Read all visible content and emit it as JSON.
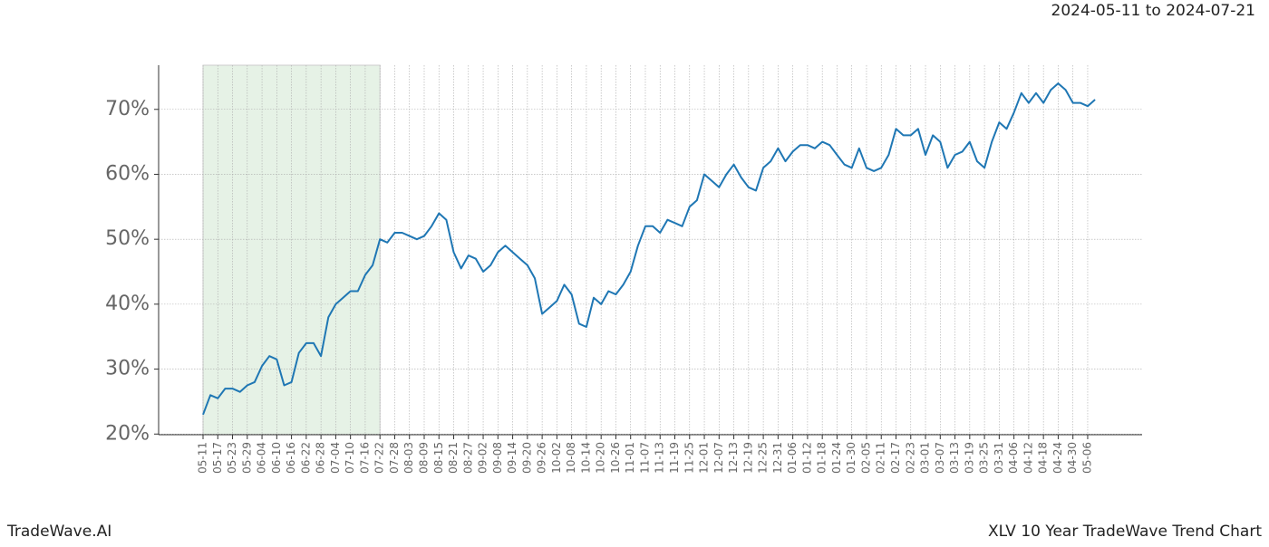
{
  "chart_data": {
    "type": "line",
    "date_range": "2024-05-11 to 2024-07-21",
    "brand": "TradeWave.AI",
    "title": "XLV 10 Year TradeWave Trend Chart",
    "categories": [
      "05-11",
      null,
      "05-17",
      null,
      "05-23",
      null,
      "05-29",
      null,
      "06-04",
      null,
      "06-10",
      null,
      "06-16",
      null,
      "06-22",
      null,
      "06-28",
      null,
      "07-04",
      null,
      "07-10",
      null,
      "07-16",
      null,
      "07-22",
      null,
      "07-28",
      null,
      "08-03",
      null,
      "08-09",
      null,
      "08-15",
      null,
      "08-21",
      null,
      "08-27",
      null,
      "09-02",
      null,
      "09-08",
      null,
      "09-14",
      null,
      "09-20",
      null,
      "09-26",
      null,
      "10-02",
      null,
      "10-08",
      null,
      "10-14",
      null,
      "10-20",
      null,
      "10-26",
      null,
      "11-01",
      null,
      "11-07",
      null,
      "11-13",
      null,
      "11-19",
      null,
      "11-25",
      null,
      "12-01",
      null,
      "12-07",
      null,
      "12-13",
      null,
      "12-19",
      null,
      "12-25",
      null,
      "12-31",
      null,
      "01-06",
      null,
      "01-12",
      null,
      "01-18",
      null,
      "01-24",
      null,
      "01-30",
      null,
      "02-05",
      null,
      "02-11",
      null,
      "02-17",
      null,
      "02-23",
      null,
      "03-01",
      null,
      "03-07",
      null,
      "03-13",
      null,
      "03-19",
      null,
      "03-25",
      null,
      "03-31",
      null,
      "04-06",
      null,
      "04-12",
      null,
      "04-18",
      null,
      "04-24",
      null,
      "04-30",
      null,
      "05-06",
      null
    ],
    "series": [
      {
        "color": "#1f77b4",
        "values": [
          23,
          26,
          25.5,
          27,
          27,
          26.5,
          27.5,
          28,
          30.5,
          32,
          31.5,
          27.5,
          28,
          32.5,
          34,
          34,
          32,
          38,
          40,
          41,
          42,
          42,
          44.5,
          46,
          50,
          49.5,
          51,
          51,
          50.5,
          50,
          50.5,
          52,
          54,
          53,
          48,
          45.5,
          47.5,
          47,
          45,
          46,
          48,
          49,
          48,
          47,
          46,
          44,
          38.5,
          39.5,
          40.5,
          43,
          41.5,
          37,
          36.5,
          41,
          40,
          42,
          41.5,
          43,
          45,
          49,
          52,
          52,
          51,
          53,
          52.5,
          52,
          55,
          56,
          60,
          59,
          58,
          60,
          61.5,
          59.5,
          58,
          57.5,
          61,
          62,
          64,
          62,
          63.5,
          64.5,
          64.5,
          64,
          65,
          64.5,
          63,
          61.5,
          61,
          64,
          61,
          60.5,
          61,
          63,
          67,
          66,
          66,
          67,
          63,
          66,
          65,
          61,
          63,
          63.5,
          65,
          62,
          61,
          65,
          68,
          67,
          69.5,
          72.5,
          71,
          72.5,
          71,
          73,
          74,
          73,
          71,
          71,
          70.5,
          71.5
        ]
      }
    ],
    "ylim": [
      19.9,
      76.8
    ],
    "yticks": [
      {
        "value": 20,
        "label": "20%"
      },
      {
        "value": 30,
        "label": "30%"
      },
      {
        "value": 40,
        "label": "40%"
      },
      {
        "value": 50,
        "label": "50%"
      },
      {
        "value": 60,
        "label": "60%"
      },
      {
        "value": 70,
        "label": "70%"
      }
    ],
    "grid": true
  }
}
